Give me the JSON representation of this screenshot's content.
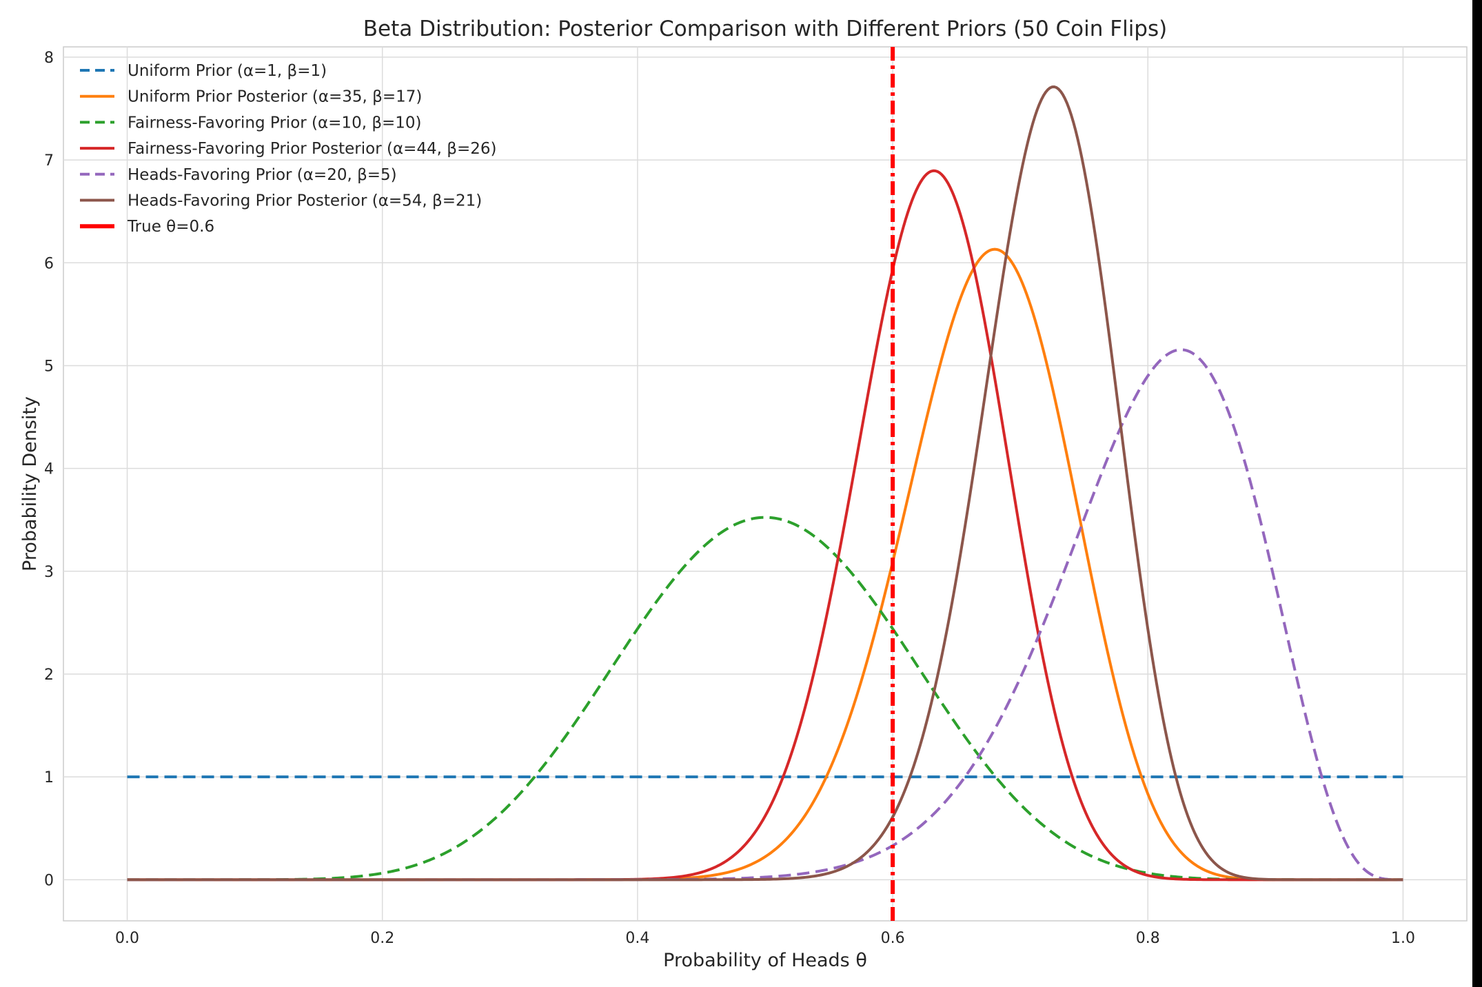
{
  "chart_data": {
    "type": "line",
    "title": "Beta Distribution: Posterior Comparison with Different Priors (50 Coin Flips)",
    "xlabel": "Probability of Heads θ",
    "ylabel": "Probability Density",
    "xlim": [
      -0.05,
      1.05
    ],
    "ylim": [
      -0.4,
      8.1
    ],
    "xticks": [
      0.0,
      0.2,
      0.4,
      0.6,
      0.8,
      1.0
    ],
    "xtick_labels": [
      "0.0",
      "0.2",
      "0.4",
      "0.6",
      "0.8",
      "1.0"
    ],
    "yticks": [
      0,
      1,
      2,
      3,
      4,
      5,
      6,
      7,
      8
    ],
    "ytick_labels": [
      "0",
      "1",
      "2",
      "3",
      "4",
      "5",
      "6",
      "7",
      "8"
    ],
    "grid": true,
    "legend_position": "top-left",
    "series": [
      {
        "name": "Uniform Prior (α=1, β=1)",
        "alpha": 1,
        "beta": 1,
        "color": "#1f77b4",
        "style": "dashed"
      },
      {
        "name": "Uniform Prior Posterior (α=35, β=17)",
        "alpha": 35,
        "beta": 17,
        "color": "#ff7f0e",
        "style": "solid"
      },
      {
        "name": "Fairness-Favoring Prior (α=10, β=10)",
        "alpha": 10,
        "beta": 10,
        "color": "#2ca02c",
        "style": "dashed"
      },
      {
        "name": "Fairness-Favoring Prior Posterior (α=44, β=26)",
        "alpha": 44,
        "beta": 26,
        "color": "#d62728",
        "style": "solid"
      },
      {
        "name": "Heads-Favoring Prior (α=20, β=5)",
        "alpha": 20,
        "beta": 5,
        "color": "#9467bd",
        "style": "dashed"
      },
      {
        "name": "Heads-Favoring Prior Posterior (α=54, β=21)",
        "alpha": 54,
        "beta": 21,
        "color": "#8c564b",
        "style": "solid"
      }
    ],
    "vline": {
      "name": "True θ=0.6",
      "x": 0.6,
      "color": "#ff0000",
      "style": "dashdot"
    }
  }
}
